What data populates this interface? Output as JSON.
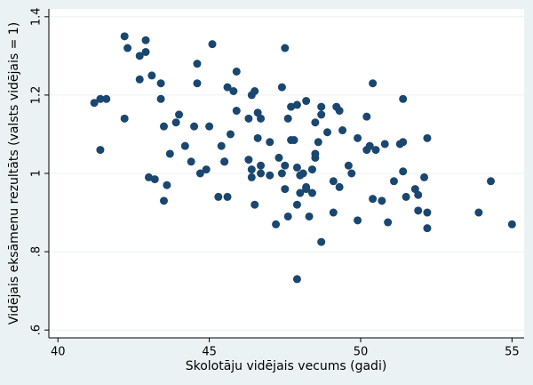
{
  "chart_data": {
    "type": "scatter",
    "x_label": "Skolotāju vidējais vecums (gadi)",
    "y_label": "Vidējais eksāmenu rezultāts (valsts vidējais = 1)",
    "color": "#1a476f",
    "xlim": [
      39.7,
      55.4
    ],
    "ylim": [
      0.58,
      1.42
    ],
    "xticks": [
      40,
      45,
      50,
      55
    ],
    "yticks": [
      {
        "value": 0.6,
        "label": ".6"
      },
      {
        "value": 0.8,
        "label": ".8"
      },
      1,
      1.2,
      1.4
    ],
    "grid": true,
    "x": [
      41.2,
      41.4,
      41.6,
      41.4,
      42.2,
      42.3,
      42.2,
      42.7,
      42.7,
      42.9,
      42.9,
      43.1,
      43.0,
      43.2,
      43.4,
      43.4,
      43.5,
      43.6,
      43.5,
      43.7,
      43.9,
      44.0,
      44.2,
      44.4,
      44.5,
      44.6,
      44.6,
      44.7,
      44.9,
      45.0,
      45.1,
      45.3,
      45.4,
      45.5,
      45.5,
      45.6,
      45.6,
      45.7,
      45.8,
      45.9,
      45.9,
      46.3,
      46.3,
      46.4,
      46.4,
      46.4,
      46.5,
      46.5,
      46.6,
      46.6,
      46.7,
      46.7,
      46.7,
      47.0,
      47.0,
      47.2,
      47.3,
      47.4,
      47.4,
      47.5,
      47.5,
      47.5,
      47.6,
      47.6,
      47.7,
      47.7,
      47.8,
      47.9,
      47.9,
      47.9,
      47.9,
      48.0,
      48.0,
      48.1,
      48.2,
      48.2,
      48.2,
      48.3,
      48.4,
      48.4,
      48.5,
      48.5,
      48.5,
      48.6,
      48.7,
      48.7,
      48.9,
      48.7,
      49.1,
      49.1,
      49.2,
      49.3,
      49.3,
      49.4,
      49.6,
      49.7,
      49.9,
      49.9,
      50.2,
      50.2,
      50.3,
      50.4,
      50.4,
      50.5,
      50.7,
      50.8,
      50.9,
      51.1,
      51.3,
      51.4,
      51.4,
      51.4,
      51.5,
      51.8,
      51.9,
      51.9,
      52.1,
      52.2,
      52.2,
      52.2,
      53.9,
      54.3,
      55.0
    ],
    "values": [
      1.18,
      1.19,
      1.19,
      1.06,
      1.35,
      1.32,
      1.14,
      1.3,
      1.24,
      1.34,
      1.31,
      1.25,
      0.99,
      0.985,
      1.23,
      1.19,
      1.12,
      0.97,
      0.93,
      1.05,
      1.13,
      1.15,
      1.07,
      1.03,
      1.12,
      1.28,
      1.23,
      1.0,
      1.01,
      1.12,
      1.33,
      0.94,
      1.07,
      1.03,
      1.03,
      0.94,
      1.22,
      1.1,
      1.21,
      1.26,
      1.16,
      1.14,
      1.035,
      1.2,
      1.01,
      0.99,
      0.92,
      1.21,
      1.155,
      1.09,
      1.14,
      1.0,
      1.02,
      1.08,
      0.995,
      0.87,
      1.04,
      1.22,
      1.0,
      0.96,
      1.02,
      1.32,
      0.89,
      1.14,
      1.085,
      1.17,
      1.085,
      0.92,
      1.175,
      1.015,
      0.73,
      0.95,
      0.995,
      1.0,
      0.965,
      1.185,
      0.96,
      0.89,
      1.01,
      0.95,
      1.05,
      1.13,
      1.04,
      1.08,
      1.17,
      1.15,
      1.105,
      0.825,
      0.98,
      0.9,
      1.17,
      1.16,
      0.965,
      1.11,
      1.02,
      1.0,
      0.88,
      1.09,
      1.145,
      1.06,
      1.07,
      1.23,
      0.935,
      1.06,
      0.93,
      1.075,
      0.875,
      0.98,
      1.075,
      1.19,
      1.08,
      1.005,
      0.94,
      0.96,
      0.905,
      0.945,
      0.99,
      1.09,
      0.9,
      0.86,
      0.9,
      0.98,
      0.87
    ]
  }
}
